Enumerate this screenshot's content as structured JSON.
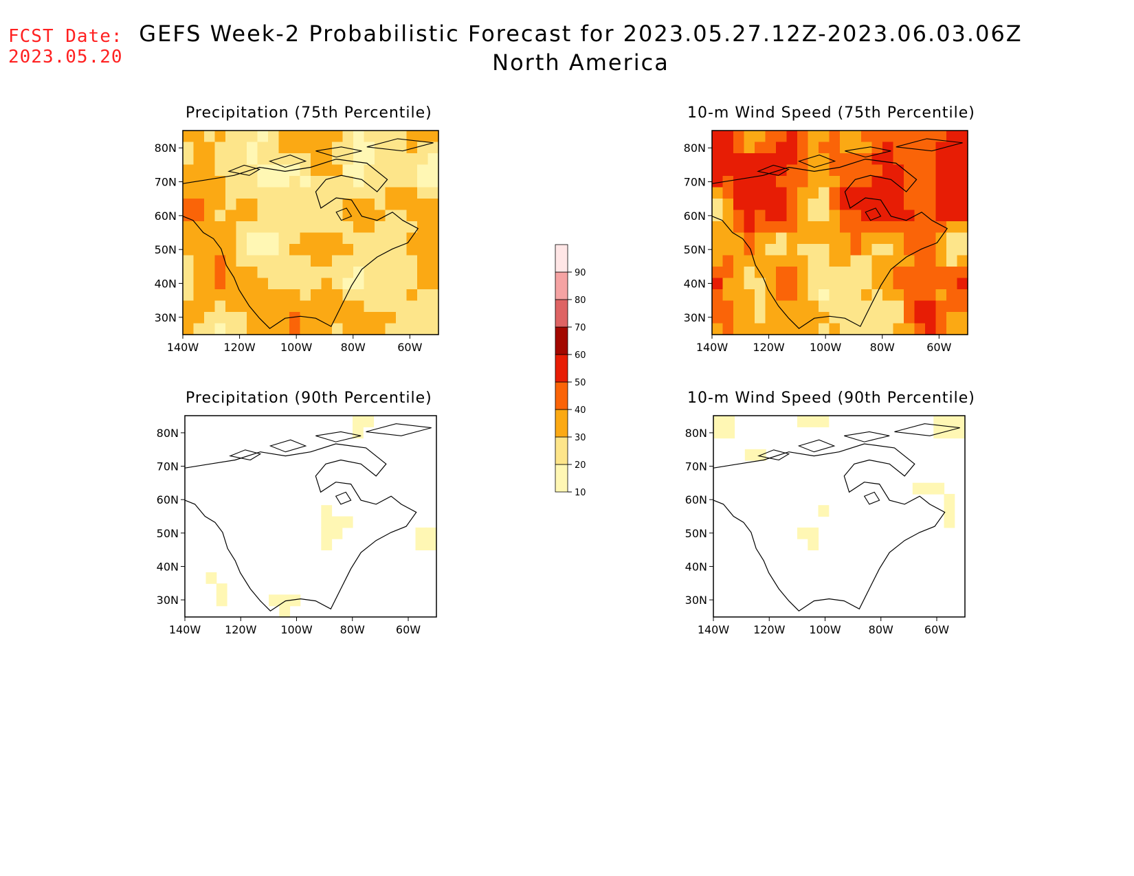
{
  "header": {
    "fcst_label": "FCST Date:",
    "fcst_date": "2023.05.20",
    "title": "GEFS Week-2 Probabilistic Forecast for 2023.05.27.12Z-2023.06.03.06Z",
    "subtitle": "North America"
  },
  "panels": [
    {
      "title": "Precipitation (75th Percentile)",
      "intensity": 1.0
    },
    {
      "title": "10-m Wind Speed (75th Percentile)",
      "intensity": 1.25
    },
    {
      "title": "Precipitation (90th Percentile)",
      "intensity": 0.35
    },
    {
      "title": "10-m Wind Speed (90th Percentile)",
      "intensity": 0.3
    }
  ],
  "axes": {
    "lat_ticks": [
      "80N",
      "70N",
      "60N",
      "50N",
      "40N",
      "30N"
    ],
    "lon_ticks": [
      "140W",
      "120W",
      "100W",
      "80W",
      "60W"
    ]
  },
  "colorbar": {
    "levels": [
      "10",
      "20",
      "30",
      "40",
      "50",
      "60",
      "70",
      "80",
      "90"
    ],
    "colors": [
      "#fff7b4",
      "#fde58a",
      "#fba914",
      "#fa6408",
      "#e71d05",
      "#a30800",
      "#de6464",
      "#f5a3a3",
      "#ffe6e6"
    ]
  }
}
